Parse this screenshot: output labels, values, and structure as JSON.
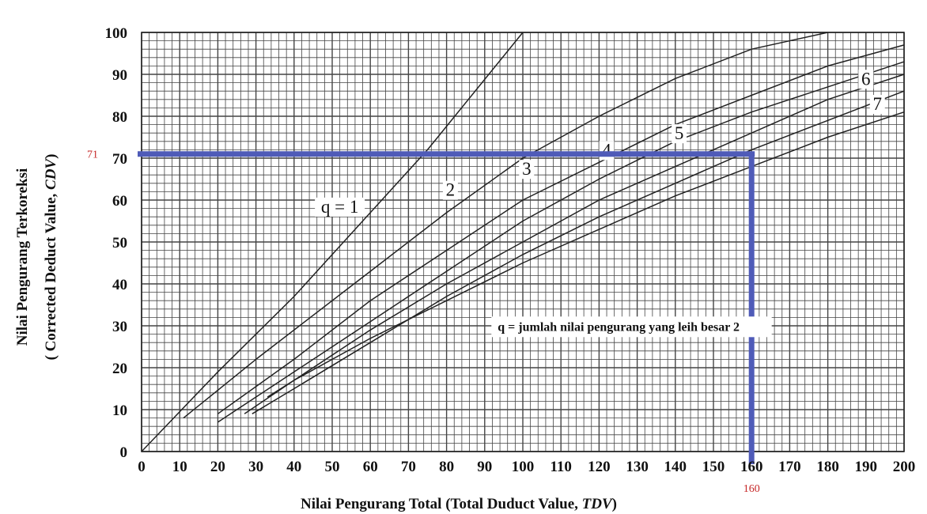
{
  "chart_data": {
    "type": "line",
    "xlabel_parts": [
      "Nilai Pengurang Total (Total Duduct Value, ",
      "TDV",
      ")"
    ],
    "ylabel_line1": "Nilai Pengurang Terkoreksi",
    "ylabel_line2_parts": [
      "( Corrected Deduct Value, ",
      "CDV",
      ")"
    ],
    "xlim": [
      0,
      200
    ],
    "ylim": [
      0,
      100
    ],
    "x_ticks": [
      0,
      10,
      20,
      30,
      40,
      50,
      60,
      70,
      80,
      90,
      100,
      110,
      120,
      130,
      140,
      150,
      160,
      170,
      180,
      190,
      200
    ],
    "y_ticks": [
      0,
      10,
      20,
      30,
      40,
      50,
      60,
      70,
      80,
      90,
      100
    ],
    "grid_minor_step": {
      "x": 2,
      "y": 2
    },
    "grid": true,
    "series": [
      {
        "name": "q = 1",
        "x": [
          0,
          20,
          40,
          60,
          75,
          100
        ],
        "y": [
          0,
          19,
          37,
          57,
          72,
          100
        ]
      },
      {
        "name": "2",
        "x": [
          11,
          30,
          60,
          80,
          100,
          120,
          140,
          160,
          180
        ],
        "y": [
          8,
          22,
          43,
          57,
          70,
          80,
          89,
          96,
          100
        ]
      },
      {
        "name": "3",
        "x": [
          20,
          40,
          60,
          80,
          100,
          120,
          140,
          160,
          180,
          200
        ],
        "y": [
          9,
          22,
          36,
          48,
          60,
          69,
          78,
          85,
          92,
          97
        ]
      },
      {
        "name": "4",
        "x": [
          20,
          40,
          60,
          80,
          100,
          120,
          140,
          160,
          180,
          200
        ],
        "y": [
          7,
          19,
          31,
          43,
          55,
          65,
          74,
          81,
          87,
          93
        ]
      },
      {
        "name": "5",
        "x": [
          27,
          40,
          60,
          80,
          100,
          120,
          140,
          160,
          180,
          200
        ],
        "y": [
          9,
          17,
          29,
          40,
          50,
          60,
          68,
          76,
          84,
          90
        ]
      },
      {
        "name": "6",
        "x": [
          29,
          40,
          60,
          80,
          100,
          120,
          140,
          160,
          180,
          200
        ],
        "y": [
          9,
          15,
          26,
          37,
          47,
          56,
          64,
          72,
          79,
          86
        ]
      },
      {
        "name": "7",
        "x": [
          33,
          40,
          60,
          80,
          100,
          120,
          140,
          160,
          180,
          200
        ],
        "y": [
          13,
          17,
          27,
          36,
          45,
          53,
          61,
          68,
          75,
          81
        ]
      }
    ],
    "curve_labels": [
      {
        "text": "q = 1",
        "x": 52,
        "y": 57
      },
      {
        "text": "2",
        "x": 81,
        "y": 61
      },
      {
        "text": "3",
        "x": 101,
        "y": 66
      },
      {
        "text": "4",
        "x": 122,
        "y": 70.5
      },
      {
        "text": "5",
        "x": 141,
        "y": 74.5
      },
      {
        "text": "6",
        "x": 190,
        "y": 87.5
      },
      {
        "text": "7",
        "x": 193,
        "y": 81.5
      }
    ],
    "highlight": {
      "x": 160,
      "y": 71,
      "x_label": "160",
      "y_label": "71",
      "color": "#4f5bb8"
    },
    "annotation": {
      "text": "q = jumlah nilai pengurang yang leih besar 2",
      "x_start": 93,
      "y": 29
    },
    "colors": {
      "grid": "#444444",
      "curve": "#222222",
      "marker_text": "#c62828"
    }
  }
}
